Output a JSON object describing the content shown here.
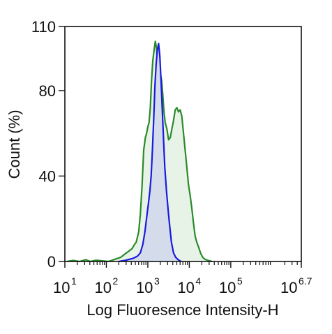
{
  "chart_data": {
    "type": "area",
    "xlabel": "Log Fluoresence Intensity-H",
    "ylabel": "Count  (%)",
    "x_scale": "log",
    "xlim": [
      1,
      6.7
    ],
    "ylim": [
      0,
      110
    ],
    "x_ticks": [
      {
        "value": 1,
        "base": "10",
        "exp": "1"
      },
      {
        "value": 2,
        "base": "10",
        "exp": "2"
      },
      {
        "value": 3,
        "base": "10",
        "exp": "3"
      },
      {
        "value": 4,
        "base": "10",
        "exp": "4"
      },
      {
        "value": 5,
        "base": "10",
        "exp": "5"
      },
      {
        "value": 6.7,
        "base": "10",
        "exp": "6.7"
      }
    ],
    "y_ticks": [
      {
        "value": 0,
        "label": "0"
      },
      {
        "value": 40,
        "label": "40"
      },
      {
        "value": 80,
        "label": "80"
      },
      {
        "value": 110,
        "label": "110"
      }
    ],
    "grid": false,
    "series": [
      {
        "color": "#2a8a2a",
        "fill": "#e8f3e8",
        "points": [
          [
            1.05,
            0
          ],
          [
            1.2,
            0.5
          ],
          [
            1.35,
            0
          ],
          [
            1.5,
            0.8
          ],
          [
            1.62,
            0
          ],
          [
            1.75,
            0.6
          ],
          [
            1.9,
            0.3
          ],
          [
            2.05,
            0
          ],
          [
            2.2,
            1.0
          ],
          [
            2.35,
            2.0
          ],
          [
            2.45,
            3.5
          ],
          [
            2.55,
            5
          ],
          [
            2.62,
            6
          ],
          [
            2.68,
            8
          ],
          [
            2.72,
            9
          ],
          [
            2.78,
            14
          ],
          [
            2.82,
            22
          ],
          [
            2.86,
            35
          ],
          [
            2.9,
            52
          ],
          [
            2.94,
            58
          ],
          [
            2.97,
            60
          ],
          [
            3.0,
            63
          ],
          [
            3.03,
            65
          ],
          [
            3.06,
            72
          ],
          [
            3.09,
            85
          ],
          [
            3.12,
            94
          ],
          [
            3.15,
            99
          ],
          [
            3.18,
            103
          ],
          [
            3.21,
            100
          ],
          [
            3.24,
            90
          ],
          [
            3.27,
            86
          ],
          [
            3.3,
            88
          ],
          [
            3.33,
            85
          ],
          [
            3.36,
            78
          ],
          [
            3.39,
            70
          ],
          [
            3.42,
            65
          ],
          [
            3.46,
            62
          ],
          [
            3.5,
            57
          ],
          [
            3.54,
            58
          ],
          [
            3.58,
            62
          ],
          [
            3.62,
            66
          ],
          [
            3.66,
            71
          ],
          [
            3.7,
            72
          ],
          [
            3.74,
            70
          ],
          [
            3.78,
            71
          ],
          [
            3.82,
            68
          ],
          [
            3.86,
            60
          ],
          [
            3.9,
            52
          ],
          [
            3.94,
            44
          ],
          [
            3.98,
            36
          ],
          [
            4.02,
            31
          ],
          [
            4.06,
            25
          ],
          [
            4.1,
            18
          ],
          [
            4.14,
            12
          ],
          [
            4.18,
            9
          ],
          [
            4.22,
            7
          ],
          [
            4.27,
            4
          ],
          [
            4.32,
            2
          ],
          [
            4.38,
            1
          ],
          [
            4.45,
            0.5
          ],
          [
            4.55,
            0
          ]
        ]
      },
      {
        "color": "#1a1ae0",
        "fill": "#d4dcec",
        "points": [
          [
            2.3,
            0
          ],
          [
            2.45,
            0.5
          ],
          [
            2.55,
            1
          ],
          [
            2.65,
            1.5
          ],
          [
            2.75,
            2.5
          ],
          [
            2.82,
            4
          ],
          [
            2.88,
            8
          ],
          [
            2.93,
            14
          ],
          [
            2.98,
            22
          ],
          [
            3.02,
            28
          ],
          [
            3.05,
            33
          ],
          [
            3.08,
            40
          ],
          [
            3.11,
            52
          ],
          [
            3.14,
            66
          ],
          [
            3.17,
            82
          ],
          [
            3.2,
            92
          ],
          [
            3.23,
            99
          ],
          [
            3.26,
            102
          ],
          [
            3.29,
            96
          ],
          [
            3.32,
            84
          ],
          [
            3.35,
            70
          ],
          [
            3.38,
            57
          ],
          [
            3.41,
            44
          ],
          [
            3.45,
            33
          ],
          [
            3.49,
            24
          ],
          [
            3.53,
            16
          ],
          [
            3.57,
            9
          ],
          [
            3.62,
            4
          ],
          [
            3.67,
            2
          ],
          [
            3.72,
            1
          ],
          [
            3.8,
            0
          ]
        ]
      }
    ]
  }
}
